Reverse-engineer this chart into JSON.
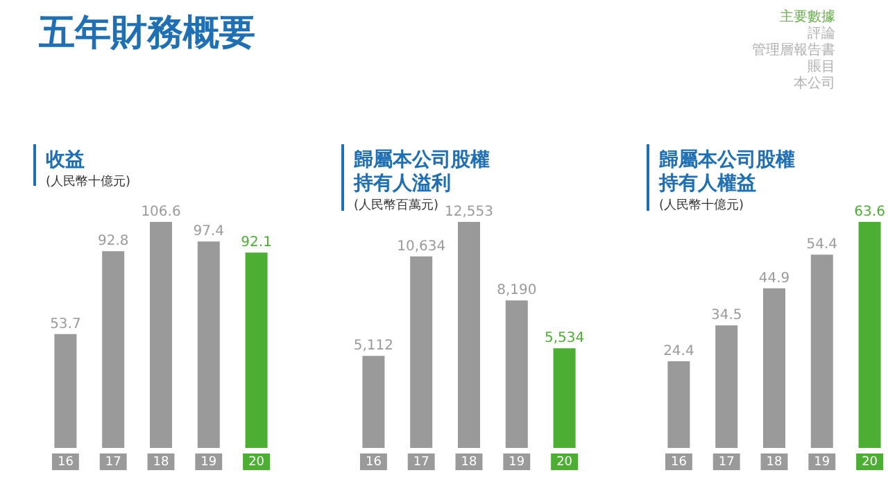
{
  "chart_data": [
    {
      "type": "other",
      "title": "五年財務概要",
      "annotations": [
        "主要數據",
        "評論",
        "管理層報告書",
        "賬目",
        "本公司"
      ]
    },
    {
      "type": "bar",
      "title": "收益",
      "subtitle": "(人民幣十億元)",
      "categories": [
        "16",
        "17",
        "18",
        "19",
        "20"
      ],
      "values": [
        53.7,
        92.8,
        106.6,
        97.4,
        92.1
      ],
      "colors": [
        "#9a9a9a",
        "#9a9a9a",
        "#9a9a9a",
        "#9a9a9a",
        "#4cae32"
      ],
      "data_labels": true
    },
    {
      "type": "bar",
      "title": "歸屬本公司股權持有人溢利",
      "subtitle": "(人民幣百萬元)",
      "categories": [
        "16",
        "17",
        "18",
        "19",
        "20"
      ],
      "values": [
        5112,
        10634,
        12553,
        8190,
        5534
      ],
      "value_labels": [
        "5,112",
        "10,634",
        "12,553",
        "8,190",
        "5,534"
      ],
      "colors": [
        "#9a9a9a",
        "#9a9a9a",
        "#9a9a9a",
        "#9a9a9a",
        "#4cae32"
      ]
    },
    {
      "type": "bar",
      "title": "歸屬本公司股權持有人權益",
      "subtitle": "(人民幣十億元)",
      "categories": [
        "16",
        "17",
        "18",
        "19",
        "20"
      ],
      "values": [
        24.4,
        34.5,
        44.9,
        54.4,
        63.6
      ],
      "colors": [
        "#9a9a9a",
        "#9a9a9a",
        "#9a9a9a",
        "#9a9a9a",
        "#4cae32"
      ],
      "data_labels": true
    }
  ]
}
